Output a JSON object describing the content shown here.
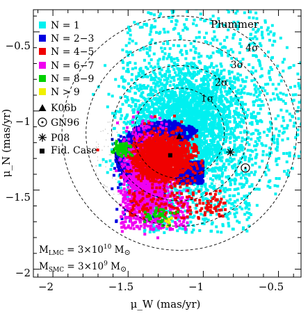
{
  "chart_data": {
    "type": "scatter",
    "title": "Plummer",
    "xlabel": "μ_W (mas/yr)",
    "ylabel": "μ_N (mas/yr)",
    "xlim": [
      -2.13,
      -0.35
    ],
    "ylim": [
      -2.05,
      -0.36
    ],
    "xticks_major": [
      -2,
      -1.5,
      -1,
      -0.5
    ],
    "yticks_major": [
      -0.5,
      -1,
      -1.5,
      -2
    ],
    "xtick_labels": [
      "−2",
      "−1.5",
      "−1",
      "−0.5"
    ],
    "ytick_labels": [
      "−0.5",
      "−1",
      "−1.5",
      "−2"
    ],
    "grid": false,
    "legend_placement": "top-left",
    "series": [
      {
        "name": "N = 1",
        "color": "#00f0f0",
        "marker": "square",
        "region": "broad cloud centred near (-1.10, -1.06), extending to r ≈ 0.6 mas/yr"
      },
      {
        "name": "N = 2−3",
        "color": "#0000e0",
        "marker": "square",
        "region": "arc around the red core, from (-1.45, -1.16) to (-1.00, -1.45)"
      },
      {
        "name": "N = 4−5",
        "color": "#f00000",
        "marker": "square",
        "region": "core centred near (-1.28, -1.30)"
      },
      {
        "name": "N = 6−7",
        "color": "#f000f0",
        "marker": "square",
        "region": "left/lower part of the core, (-1.50 to -1.10, -1.25 to -1.75)"
      },
      {
        "name": "N = 8−9",
        "color": "#00d000",
        "marker": "square",
        "region": "near (-1.53, -1.24) and (-1.30, -1.66)"
      },
      {
        "name": "N > 9",
        "color": "#f0f000",
        "marker": "square",
        "region": "near (-1.23, -1.70)"
      }
    ],
    "contours": [
      {
        "label": "1σ",
        "center": [
          -1.16,
          -1.14
        ],
        "radius": 0.3,
        "style": "dashed"
      },
      {
        "label": "2σ",
        "center": [
          -1.16,
          -1.14
        ],
        "radius": 0.45,
        "style": "dashed"
      },
      {
        "label": "3σ",
        "center": [
          -1.16,
          -1.14
        ],
        "radius": 0.62,
        "style": "dashed"
      },
      {
        "label": "4σ",
        "center": [
          -1.16,
          -1.14
        ],
        "radius": 0.78,
        "style": "dashed"
      }
    ],
    "reference_points": [
      {
        "name": "K06b",
        "marker": "triangle",
        "x": -1.16,
        "y": -1.16
      },
      {
        "name": "GN96",
        "marker": "circled-dot",
        "x": -0.72,
        "y": -1.36
      },
      {
        "name": "P08",
        "marker": "asterisk",
        "x": -0.82,
        "y": -1.26
      },
      {
        "name": "Fid. Case",
        "marker": "filled-square",
        "x": -1.22,
        "y": -1.28
      }
    ],
    "annotations": [
      {
        "prefix": "M",
        "sub": "LMC",
        "text": " = 3×10",
        "sup": "10",
        "unit": " M",
        "unit_sub": "⊙"
      },
      {
        "prefix": "M",
        "sub": "SMC",
        "text": " = 3×10",
        "sup": "9",
        "unit": " M",
        "unit_sub": "⊙"
      }
    ]
  }
}
